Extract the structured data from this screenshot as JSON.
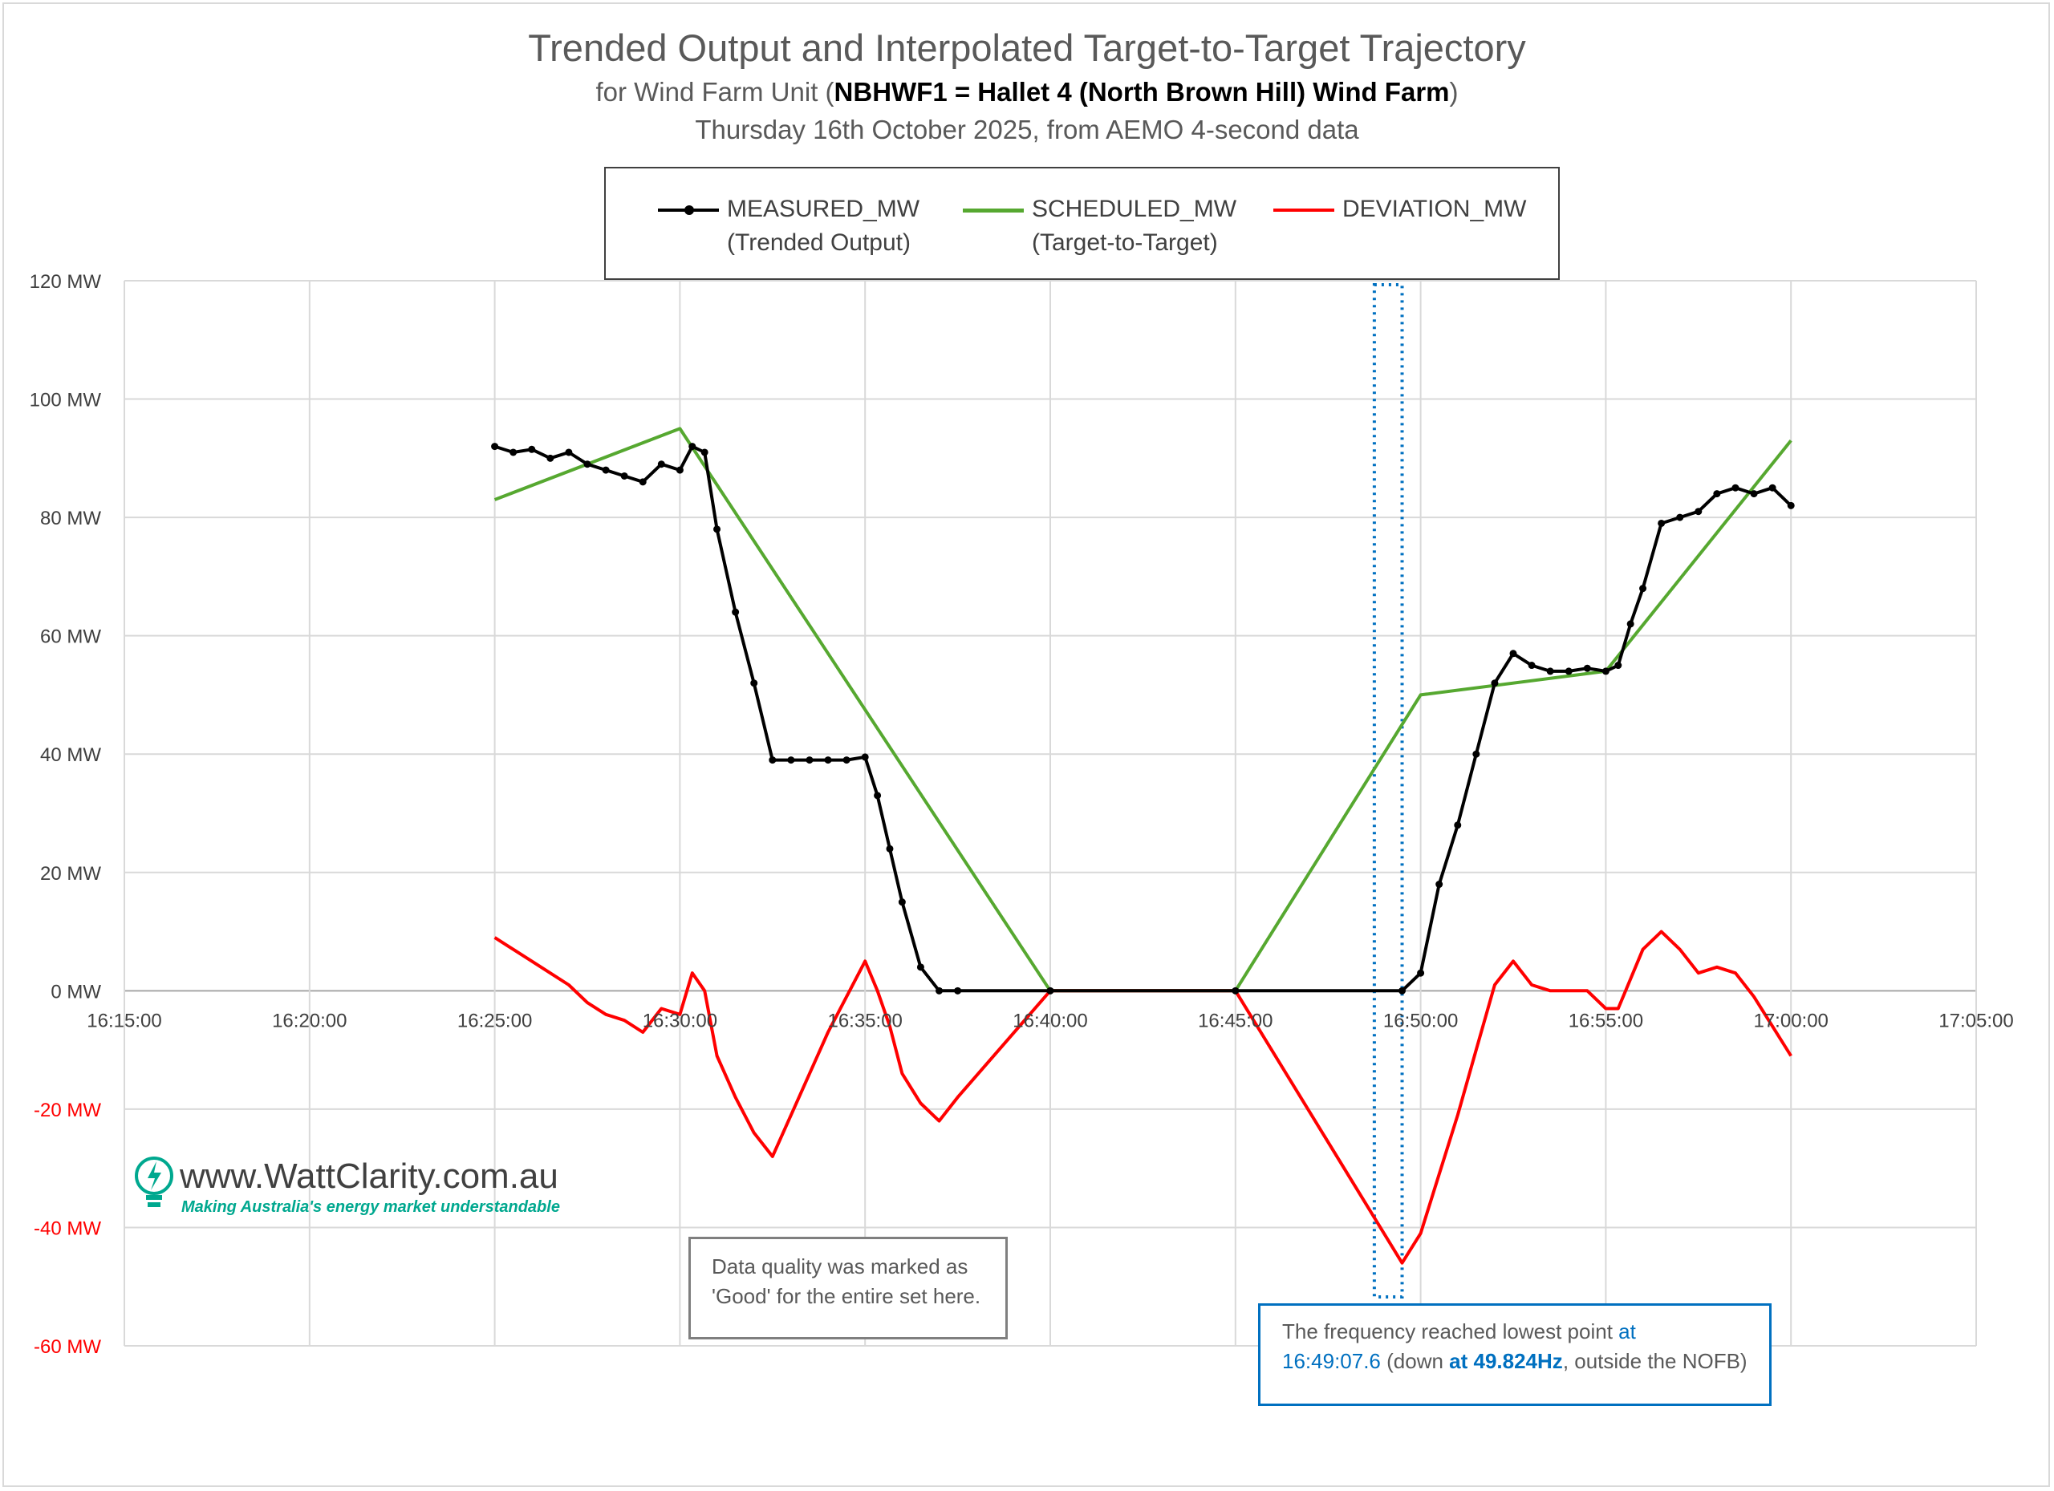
{
  "title": "Trended Output and Interpolated Target-to-Target Trajectory",
  "subtitle_prefix": "for Wind Farm Unit (",
  "subtitle_bold": "NBHWF1 = Hallet 4 (North Brown Hill) Wind Farm",
  "subtitle_suffix": ")",
  "subtitle2": "Thursday 16th October 2025, from AEMO 4-second data",
  "legend": [
    {
      "name": "MEASURED_MW",
      "sub": "(Trended Output)",
      "color": "#000000"
    },
    {
      "name": "SCHEDULED_MW",
      "sub": "(Target-to-Target)",
      "color": "#56a830"
    },
    {
      "name": "DEVIATION_MW",
      "sub": "",
      "color": "#ff0000"
    }
  ],
  "annotation_quality": "Data quality was marked as 'Good' for the entire set here.",
  "annotation_freq": {
    "t1": "The frequency reached lowest point ",
    "t2": "at",
    "t3": "16:49:07.6",
    "t4": " (down ",
    "t5": "at 49.824Hz",
    "t6": ", outside the NOFB)"
  },
  "logo": {
    "url": "www.WattClarity.com.au",
    "tagline": "Making Australia's energy market understandable",
    "icon": "lightbulb-bolt-icon"
  },
  "chart_data": {
    "type": "line",
    "x_unit": "time (hh:mm:ss)",
    "y_unit": "MW",
    "xlim": [
      "16:15:00",
      "17:05:00"
    ],
    "ylim": [
      -60,
      120
    ],
    "x_ticks": [
      "16:15:00",
      "16:20:00",
      "16:25:00",
      "16:30:00",
      "16:35:00",
      "16:40:00",
      "16:45:00",
      "16:50:00",
      "16:55:00",
      "17:00:00",
      "17:05:00"
    ],
    "y_ticks": [
      "120 MW",
      "100 MW",
      "80 MW",
      "60 MW",
      "40 MW",
      "20 MW",
      "0 MW",
      "-20 MW",
      "-40 MW",
      "-60 MW"
    ],
    "y_tick_values": [
      120,
      100,
      80,
      60,
      40,
      20,
      0,
      -20,
      -40,
      -60
    ],
    "grid": true,
    "legend_position": "top",
    "highlight_band": {
      "from": "16:48:45",
      "to": "16:49:30"
    },
    "series": [
      {
        "name": "MEASURED_MW",
        "color": "#000000",
        "markers": true,
        "x": [
          "16:25:00",
          "16:25:30",
          "16:26:00",
          "16:26:30",
          "16:27:00",
          "16:27:30",
          "16:28:00",
          "16:28:30",
          "16:29:00",
          "16:29:30",
          "16:30:00",
          "16:30:20",
          "16:30:40",
          "16:31:00",
          "16:31:30",
          "16:32:00",
          "16:32:30",
          "16:33:00",
          "16:33:30",
          "16:34:00",
          "16:34:30",
          "16:35:00",
          "16:35:20",
          "16:35:40",
          "16:36:00",
          "16:36:30",
          "16:37:00",
          "16:37:30",
          "16:40:00",
          "16:45:00",
          "16:49:30",
          "16:50:00",
          "16:50:30",
          "16:51:00",
          "16:51:30",
          "16:52:00",
          "16:52:30",
          "16:53:00",
          "16:53:30",
          "16:54:00",
          "16:54:30",
          "16:55:00",
          "16:55:20",
          "16:55:40",
          "16:56:00",
          "16:56:30",
          "16:57:00",
          "16:57:30",
          "16:58:00",
          "16:58:30",
          "16:59:00",
          "16:59:30",
          "17:00:00"
        ],
        "y": [
          92,
          91,
          91.5,
          90,
          91,
          89,
          88,
          87,
          86,
          89,
          88,
          92,
          91,
          78,
          64,
          52,
          39,
          39,
          39,
          39,
          39,
          39.5,
          33,
          24,
          15,
          4,
          0,
          0,
          0,
          0,
          0,
          3,
          18,
          28,
          40,
          52,
          57,
          55,
          54,
          54,
          54.5,
          54,
          55,
          62,
          68,
          79,
          80,
          81,
          84,
          85,
          84,
          85,
          82
        ]
      },
      {
        "name": "SCHEDULED_MW",
        "color": "#56a830",
        "markers": false,
        "x": [
          "16:25:00",
          "16:30:00",
          "16:40:00",
          "16:45:00",
          "16:50:00",
          "16:55:00",
          "17:00:00"
        ],
        "y": [
          83,
          95,
          0,
          0,
          50,
          54,
          93
        ]
      },
      {
        "name": "DEVIATION_MW",
        "color": "#ff0000",
        "markers": false,
        "x": [
          "16:25:00",
          "16:25:30",
          "16:26:00",
          "16:26:30",
          "16:27:00",
          "16:27:30",
          "16:28:00",
          "16:28:30",
          "16:29:00",
          "16:29:30",
          "16:30:00",
          "16:30:20",
          "16:30:40",
          "16:31:00",
          "16:31:30",
          "16:32:00",
          "16:32:30",
          "16:33:00",
          "16:33:30",
          "16:34:00",
          "16:34:30",
          "16:35:00",
          "16:35:20",
          "16:35:40",
          "16:36:00",
          "16:36:30",
          "16:37:00",
          "16:37:30",
          "16:40:00",
          "16:45:00",
          "16:49:30",
          "16:50:00",
          "16:50:30",
          "16:51:00",
          "16:51:30",
          "16:52:00",
          "16:52:30",
          "16:53:00",
          "16:53:30",
          "16:54:00",
          "16:54:30",
          "16:55:00",
          "16:55:20",
          "16:55:40",
          "16:56:00",
          "16:56:30",
          "16:57:00",
          "16:57:30",
          "16:58:00",
          "16:58:30",
          "16:59:00",
          "16:59:30",
          "17:00:00"
        ],
        "y": [
          9,
          7,
          5,
          3,
          1,
          -2,
          -4,
          -5,
          -7,
          -3,
          -4,
          3,
          0,
          -11,
          -18,
          -24,
          -28,
          -21,
          -14,
          -7,
          -1,
          5,
          0,
          -6,
          -14,
          -19,
          -22,
          -18,
          0,
          0,
          -46,
          -41,
          -31,
          -21,
          -10,
          1,
          5,
          1,
          0,
          0,
          0,
          -3,
          -3,
          2,
          7,
          10,
          7,
          3,
          4,
          3,
          -1,
          -6,
          -11
        ]
      }
    ]
  }
}
